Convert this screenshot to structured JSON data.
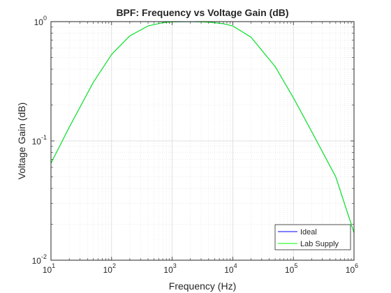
{
  "chart_data": {
    "type": "line",
    "title": "BPF: Frequency vs Voltage Gain (dB)",
    "xlabel": "Frequency (Hz)",
    "ylabel": "Voltage Gain (dB)",
    "xscale": "log",
    "yscale": "log",
    "xlim": [
      10,
      1000000
    ],
    "ylim": [
      0.01,
      1
    ],
    "x_ticks": [
      {
        "base": "10",
        "exp": "1"
      },
      {
        "base": "10",
        "exp": "2"
      },
      {
        "base": "10",
        "exp": "3"
      },
      {
        "base": "10",
        "exp": "4"
      },
      {
        "base": "10",
        "exp": "5"
      },
      {
        "base": "10",
        "exp": "6"
      }
    ],
    "y_ticks": [
      {
        "base": "10",
        "exp": "-2"
      },
      {
        "base": "10",
        "exp": "-1"
      },
      {
        "base": "10",
        "exp": "0"
      }
    ],
    "grid": true,
    "minor_grid": true,
    "legend_position": "bottom-right",
    "series": [
      {
        "name": "Ideal",
        "color": "#0000ff",
        "x": [
          10,
          20,
          50,
          100,
          200,
          400,
          700,
          1000,
          2000,
          4000,
          7000,
          10000,
          20000,
          50000,
          100000,
          200000,
          500000,
          1000000
        ],
        "values": [
          0.065,
          0.13,
          0.31,
          0.53,
          0.76,
          0.92,
          0.98,
          0.995,
          1.0,
          0.99,
          0.96,
          0.92,
          0.74,
          0.42,
          0.23,
          0.12,
          0.05,
          0.017
        ]
      },
      {
        "name": "Lab Supply",
        "color": "#00ff00",
        "x": [
          10,
          20,
          50,
          100,
          200,
          400,
          700,
          1000,
          2000,
          4000,
          7000,
          10000,
          20000,
          50000,
          100000,
          200000,
          500000,
          1000000
        ],
        "values": [
          0.065,
          0.13,
          0.31,
          0.53,
          0.76,
          0.92,
          0.98,
          0.995,
          1.0,
          0.99,
          0.96,
          0.92,
          0.74,
          0.42,
          0.23,
          0.12,
          0.05,
          0.017
        ]
      }
    ]
  }
}
